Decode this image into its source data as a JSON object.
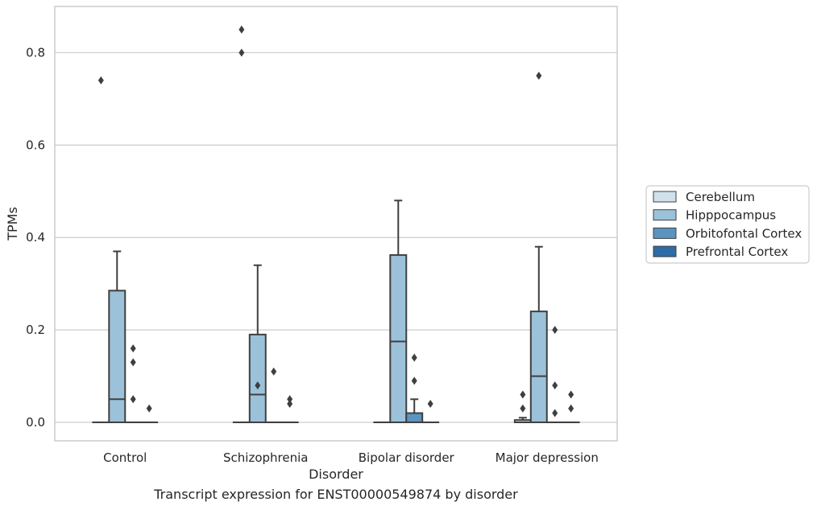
{
  "chart_data": {
    "type": "box",
    "xlabel": "Disorder",
    "ylabel": "TPMs",
    "caption": "Transcript expression for ENST00000549874 by disorder",
    "ylim": [
      -0.04,
      0.9
    ],
    "yticks": [
      0.0,
      0.2,
      0.4,
      0.6,
      0.8
    ],
    "ytick_labels": [
      "0.0",
      "0.2",
      "0.4",
      "0.6",
      "0.8"
    ],
    "grid": "horizontal",
    "legend_position": "right",
    "categories": [
      "Control",
      "Schizophrenia",
      "Bipolar disorder",
      "Major depression"
    ],
    "series": [
      {
        "name": "Cerebellum",
        "color": "#d1e1ec",
        "boxes": [
          {
            "q1": 0,
            "median": 0,
            "q3": 0,
            "whisker_low": 0,
            "whisker_high": 0,
            "outliers": [
              0.74
            ]
          },
          {
            "q1": 0,
            "median": 0,
            "q3": 0,
            "whisker_low": 0,
            "whisker_high": 0,
            "outliers": [
              0.85,
              0.8
            ]
          },
          {
            "q1": 0,
            "median": 0,
            "q3": 0,
            "whisker_low": 0,
            "whisker_high": 0,
            "outliers": []
          },
          {
            "q1": 0,
            "median": 0,
            "q3": 0.005,
            "whisker_low": 0,
            "whisker_high": 0.01,
            "outliers": [
              0.06,
              0.03
            ]
          }
        ]
      },
      {
        "name": "Hipppocampus",
        "color": "#9cc2da",
        "boxes": [
          {
            "q1": 0,
            "median": 0.05,
            "q3": 0.285,
            "whisker_low": 0,
            "whisker_high": 0.37,
            "outliers": []
          },
          {
            "q1": 0,
            "median": 0.06,
            "q3": 0.19,
            "whisker_low": 0,
            "whisker_high": 0.34,
            "outliers": [
              0.08
            ]
          },
          {
            "q1": 0,
            "median": 0.175,
            "q3": 0.362,
            "whisker_low": 0,
            "whisker_high": 0.48,
            "outliers": []
          },
          {
            "q1": 0,
            "median": 0.1,
            "q3": 0.24,
            "whisker_low": 0,
            "whisker_high": 0.38,
            "outliers": [
              0.75
            ]
          }
        ]
      },
      {
        "name": "Orbitofontal Cortex",
        "color": "#5a94bf",
        "boxes": [
          {
            "q1": 0,
            "median": 0,
            "q3": 0,
            "whisker_low": 0,
            "whisker_high": 0,
            "outliers": [
              0.16,
              0.13,
              0.05
            ]
          },
          {
            "q1": 0,
            "median": 0,
            "q3": 0,
            "whisker_low": 0,
            "whisker_high": 0,
            "outliers": [
              0.11
            ]
          },
          {
            "q1": 0,
            "median": 0,
            "q3": 0.02,
            "whisker_low": 0,
            "whisker_high": 0.05,
            "outliers": [
              0.14,
              0.09
            ]
          },
          {
            "q1": 0,
            "median": 0,
            "q3": 0,
            "whisker_low": 0,
            "whisker_high": 0,
            "outliers": [
              0.2,
              0.08,
              0.02
            ]
          }
        ]
      },
      {
        "name": "Prefrontal Cortex",
        "color": "#2e6ca6",
        "boxes": [
          {
            "q1": 0,
            "median": 0,
            "q3": 0,
            "whisker_low": 0,
            "whisker_high": 0,
            "outliers": [
              0.03
            ]
          },
          {
            "q1": 0,
            "median": 0,
            "q3": 0,
            "whisker_low": 0,
            "whisker_high": 0,
            "outliers": [
              0.05,
              0.04
            ]
          },
          {
            "q1": 0,
            "median": 0,
            "q3": 0,
            "whisker_low": 0,
            "whisker_high": 0,
            "outliers": [
              0.04
            ]
          },
          {
            "q1": 0,
            "median": 0,
            "q3": 0,
            "whisker_low": 0,
            "whisker_high": 0,
            "outliers": [
              0.06,
              0.03
            ]
          }
        ]
      }
    ]
  }
}
